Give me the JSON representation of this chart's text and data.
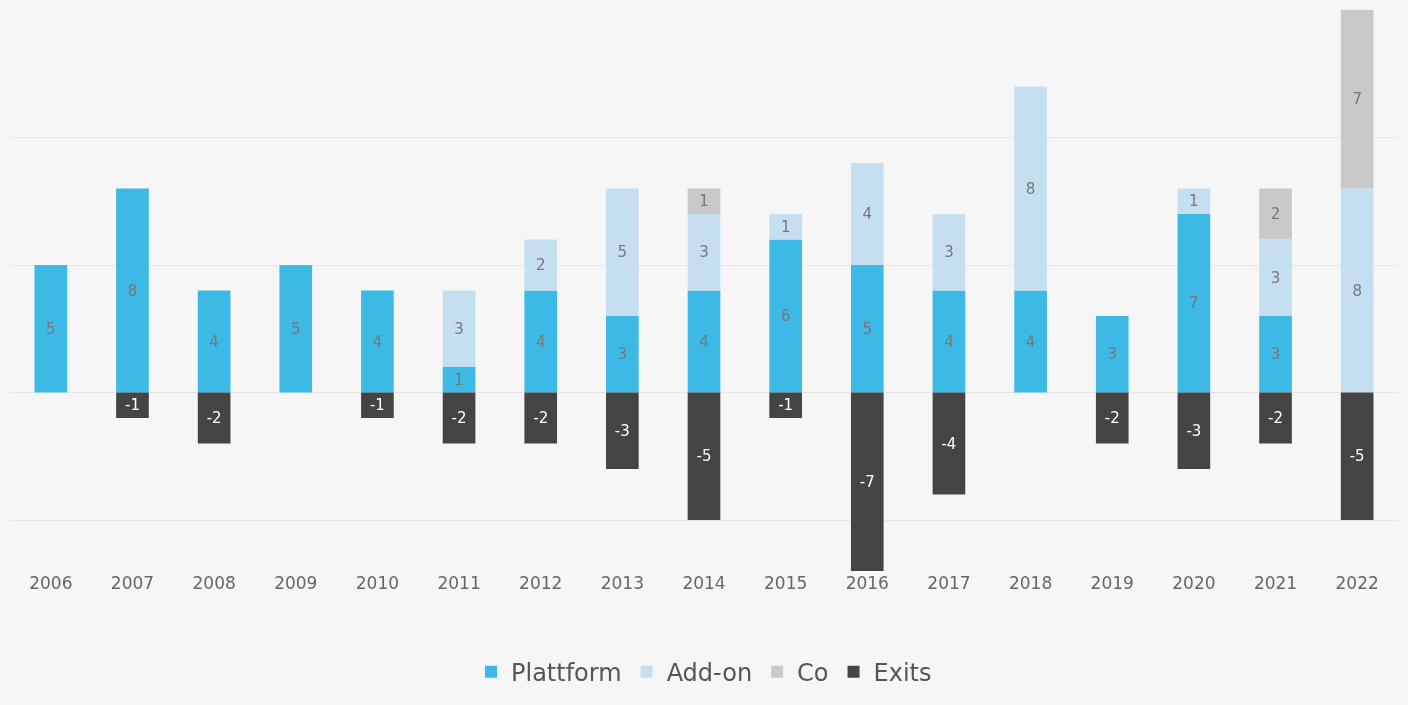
{
  "chart_data": {
    "type": "bar",
    "stacked": true,
    "data_labels": true,
    "legend": "bottom",
    "grid": "y",
    "categories": [
      "2006",
      "2007",
      "2008",
      "2009",
      "2010",
      "2011",
      "2012",
      "2013",
      "2014",
      "2015",
      "2016",
      "2017",
      "2018",
      "2019",
      "2020",
      "2021",
      "2022"
    ],
    "ylim": [
      -7,
      15
    ],
    "yticks": [
      {
        "value": -5,
        "label": null
      },
      {
        "value": 0,
        "label": null
      },
      {
        "value": 5,
        "label": null
      },
      {
        "value": 10,
        "label": null
      }
    ],
    "tick_labels": "x",
    "series": [
      {
        "name": "Plattform",
        "color": "#3db9e6",
        "values": [
          5,
          8,
          4,
          5,
          4,
          1,
          4,
          3,
          4,
          6,
          5,
          4,
          4,
          3,
          7,
          3,
          null
        ]
      },
      {
        "name": "Add-on",
        "color": "#c6dff0",
        "values": [
          null,
          null,
          null,
          null,
          null,
          3,
          2,
          5,
          3,
          1,
          4,
          3,
          8,
          null,
          1,
          3,
          8
        ]
      },
      {
        "name": "Co",
        "color": "#c9c9c9",
        "values": [
          null,
          null,
          null,
          null,
          null,
          null,
          null,
          null,
          1,
          null,
          null,
          null,
          null,
          null,
          null,
          2,
          7
        ]
      },
      {
        "name": "Exits",
        "color": "#444444",
        "values": [
          null,
          -1,
          -2,
          null,
          -1,
          -2,
          -2,
          -3,
          -5,
          -1,
          -7,
          -4,
          null,
          -2,
          -3,
          -2,
          -5
        ]
      }
    ]
  }
}
